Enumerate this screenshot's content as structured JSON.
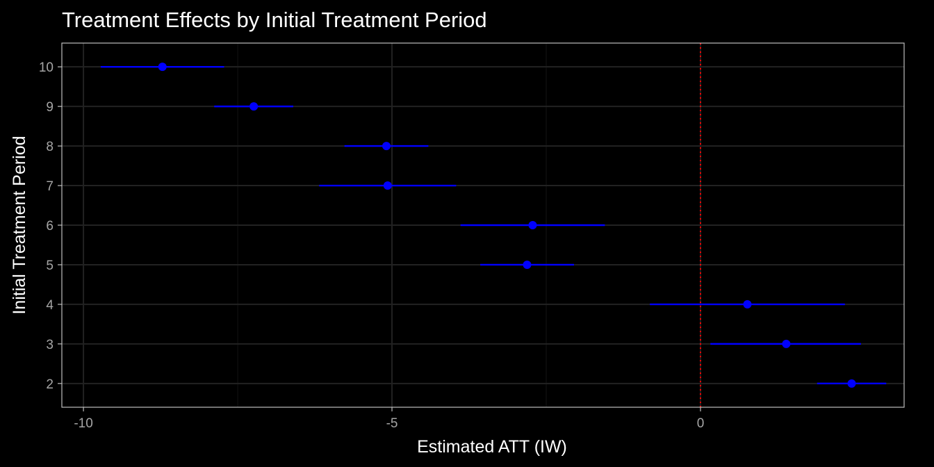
{
  "chart_data": {
    "type": "scatter",
    "title": "Treatment Effects by Initial Treatment Period",
    "xlabel": "Estimated ATT (IW)",
    "ylabel": "Initial Treatment Period",
    "xlim": [
      -10.35,
      3.3
    ],
    "ylim": [
      1.4,
      10.6
    ],
    "x_ticks": [
      -10,
      -5,
      0
    ],
    "x_tick_labels": [
      "-10",
      "-5",
      "0"
    ],
    "y_ticks": [
      2,
      3,
      4,
      5,
      6,
      7,
      8,
      9,
      10
    ],
    "y_tick_labels": [
      "2",
      "3",
      "4",
      "5",
      "6",
      "7",
      "8",
      "9",
      "10"
    ],
    "grid": true,
    "legend": "none",
    "reference_line": {
      "x": 0,
      "style": "dotted",
      "color": "#ff0000"
    },
    "point_color": "#0000ff",
    "points": [
      {
        "period": 10,
        "estimate": -8.72,
        "ci_low": -9.72,
        "ci_high": -7.72
      },
      {
        "period": 9,
        "estimate": -7.24,
        "ci_low": -7.88,
        "ci_high": -6.6
      },
      {
        "period": 8,
        "estimate": -5.09,
        "ci_low": -5.77,
        "ci_high": -4.41
      },
      {
        "period": 7,
        "estimate": -5.07,
        "ci_low": -6.18,
        "ci_high": -3.96
      },
      {
        "period": 6,
        "estimate": -2.72,
        "ci_low": -3.89,
        "ci_high": -1.55
      },
      {
        "period": 5,
        "estimate": -2.81,
        "ci_low": -3.57,
        "ci_high": -2.05
      },
      {
        "period": 4,
        "estimate": 0.76,
        "ci_low": -0.82,
        "ci_high": 2.34
      },
      {
        "period": 3,
        "estimate": 1.39,
        "ci_low": 0.16,
        "ci_high": 2.6
      },
      {
        "period": 2,
        "estimate": 2.45,
        "ci_low": 1.89,
        "ci_high": 3.01
      }
    ]
  }
}
